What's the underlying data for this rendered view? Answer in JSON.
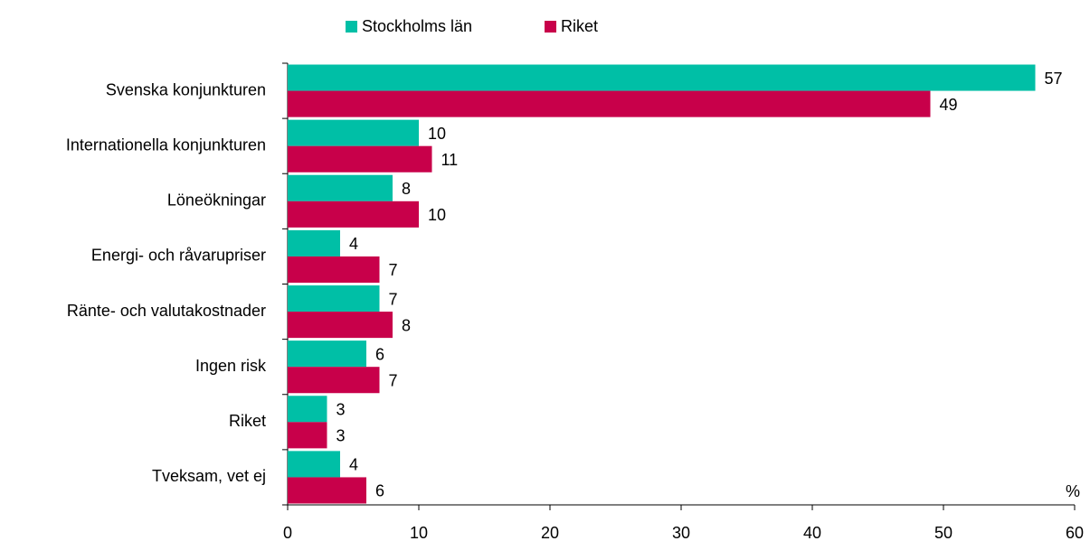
{
  "chart_data": {
    "type": "bar",
    "orientation": "horizontal",
    "categories": [
      "Svenska konjunkturen",
      "Internationella konjunkturen",
      "Löneökningar",
      "Energi- och råvarupriser",
      "Ränte- och valutakostnader",
      "Ingen risk",
      "Riket",
      "Tveksam, vet ej"
    ],
    "series": [
      {
        "name": "Stockholms län",
        "color": "#00bfa6",
        "values": [
          57,
          10,
          8,
          4,
          7,
          6,
          3,
          4
        ]
      },
      {
        "name": "Riket",
        "color": "#c8004a",
        "values": [
          49,
          11,
          10,
          7,
          8,
          7,
          3,
          6
        ]
      }
    ],
    "xlabel": "%",
    "xlim": [
      0,
      60
    ],
    "xticks": [
      0,
      10,
      20,
      30,
      40,
      50,
      60
    ],
    "legend": "top"
  }
}
